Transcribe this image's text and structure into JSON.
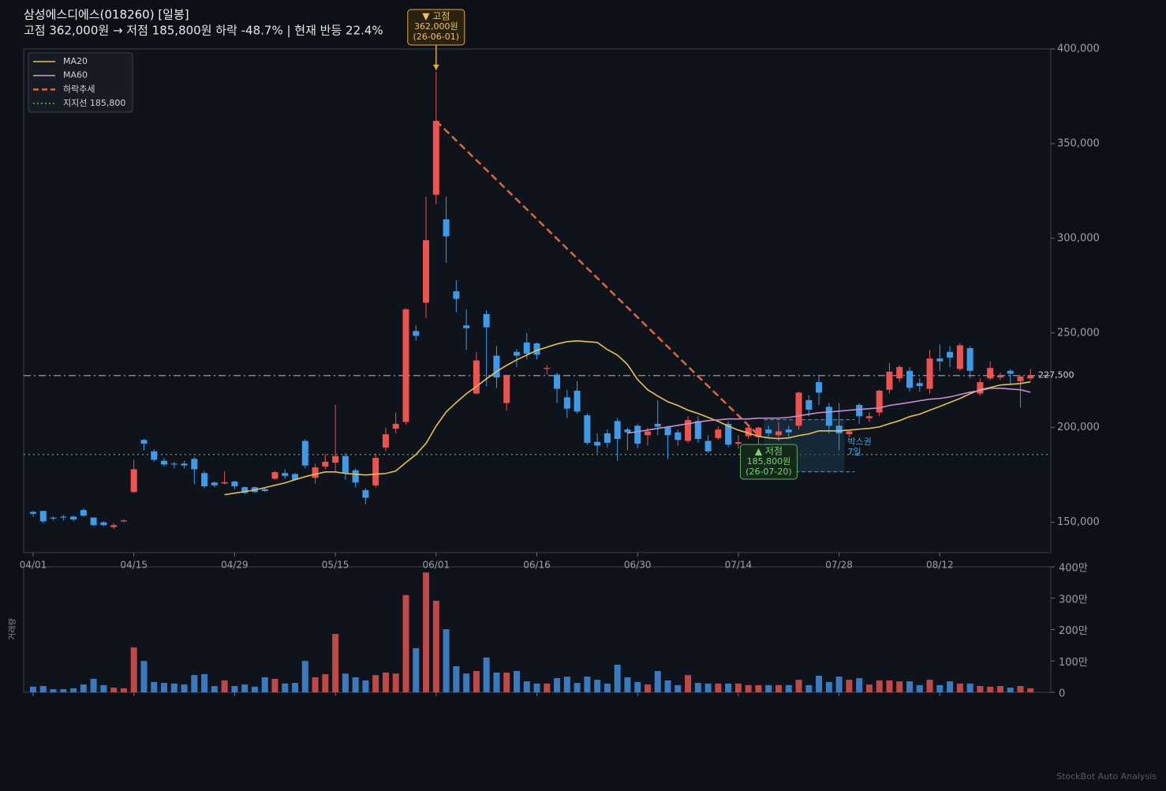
{
  "chart_data": {
    "type": "candlestick",
    "title": "삼성에스디에스(018260)  [일봉]",
    "subtitle": "고점 362,000원 → 저점 185,800원  하락 -48.7%  |  현재 반등 22.4%",
    "categories": [
      "04/01",
      null,
      null,
      null,
      null,
      null,
      null,
      null,
      null,
      null,
      "04/15",
      null,
      null,
      null,
      null,
      null,
      null,
      null,
      null,
      null,
      "04/29",
      null,
      null,
      null,
      null,
      null,
      null,
      null,
      null,
      null,
      "05/15",
      null,
      null,
      null,
      null,
      null,
      null,
      null,
      null,
      null,
      "06/01",
      null,
      null,
      null,
      null,
      null,
      null,
      null,
      null,
      null,
      "06/16",
      null,
      null,
      null,
      null,
      null,
      null,
      null,
      null,
      null,
      "06/30",
      null,
      null,
      null,
      null,
      null,
      null,
      null,
      null,
      null,
      "07/14",
      null,
      null,
      null,
      null,
      null,
      null,
      null,
      null,
      null,
      "07/28",
      null,
      null,
      null,
      null,
      null,
      null,
      null,
      null,
      null,
      "08/12",
      null,
      null,
      null,
      null,
      null,
      null,
      null,
      null,
      null
    ],
    "open": [
      155500,
      156000,
      152500,
      153000,
      153000,
      156500,
      152500,
      150000,
      147500,
      150500,
      166000,
      193500,
      187500,
      182500,
      181000,
      181000,
      183500,
      176000,
      171000,
      170500,
      171500,
      168500,
      168500,
      167500,
      173000,
      176000,
      175500,
      193000,
      173500,
      179500,
      181500,
      185000,
      177500,
      167000,
      169500,
      189500,
      199500,
      203000,
      251000,
      266000,
      323000,
      310000,
      272000,
      254000,
      218000,
      260000,
      238000,
      213000,
      240000,
      245000,
      244500,
      231000,
      228000,
      216000,
      219500,
      206500,
      192500,
      197000,
      203500,
      199000,
      201000,
      196000,
      202000,
      200500,
      197500,
      193000,
      203500,
      193000,
      194500,
      202000,
      191500,
      195500,
      195000,
      199000,
      196000,
      199000,
      201000,
      214500,
      224000,
      211000,
      201000,
      196500,
      212000,
      205000,
      208000,
      220000,
      226000,
      230000,
      223500,
      220500,
      236500,
      240000,
      231000,
      242000,
      218000,
      226000,
      226500,
      230000,
      224500,
      226000
    ],
    "high": [
      156000,
      156000,
      153000,
      154000,
      153500,
      157500,
      152500,
      150500,
      149500,
      151500,
      183000,
      194000,
      188500,
      184000,
      182000,
      182500,
      184500,
      177000,
      171500,
      177000,
      172000,
      169000,
      169000,
      168500,
      177000,
      178000,
      176000,
      194000,
      181000,
      186000,
      212000,
      186500,
      178500,
      168000,
      186500,
      200000,
      208000,
      263000,
      254000,
      322000,
      388000,
      322000,
      278000,
      262500,
      240000,
      262000,
      243000,
      228000,
      241500,
      250000,
      245000,
      233000,
      229000,
      220000,
      224500,
      207500,
      197000,
      199000,
      205000,
      200000,
      202000,
      200000,
      214500,
      201000,
      199000,
      206000,
      206000,
      196000,
      200500,
      203500,
      196000,
      201000,
      200500,
      201000,
      203000,
      201000,
      219000,
      217000,
      228000,
      213000,
      213000,
      199000,
      213000,
      208000,
      220000,
      234000,
      233000,
      232000,
      226000,
      241000,
      244000,
      243000,
      244500,
      243000,
      226000,
      235000,
      229000,
      231000,
      227500,
      231000
    ],
    "low": [
      153000,
      149500,
      151000,
      151000,
      150500,
      153000,
      148000,
      148000,
      146500,
      150000,
      165500,
      188000,
      182000,
      179500,
      178500,
      178500,
      170000,
      168000,
      168500,
      170000,
      167500,
      165000,
      165500,
      166000,
      172500,
      173000,
      172000,
      178500,
      170500,
      178000,
      177000,
      172500,
      168500,
      159500,
      168500,
      187500,
      197000,
      201500,
      246000,
      258000,
      318000,
      287000,
      261000,
      241000,
      217500,
      222000,
      221000,
      209000,
      232000,
      236000,
      236000,
      228000,
      213000,
      205000,
      207500,
      191000,
      186500,
      189500,
      182500,
      188000,
      189000,
      190500,
      196000,
      183500,
      190500,
      192000,
      192000,
      186500,
      193500,
      189500,
      189000,
      194000,
      185800,
      195000,
      193000,
      195000,
      199000,
      206000,
      212000,
      197000,
      188000,
      195000,
      202000,
      203000,
      206000,
      218000,
      224000,
      219000,
      219000,
      218000,
      230000,
      232000,
      230000,
      226000,
      217000,
      225000,
      225000,
      223000,
      210500,
      225000
    ],
    "close": [
      154500,
      150500,
      152000,
      152500,
      151500,
      153500,
      148500,
      148500,
      148500,
      151000,
      178000,
      191500,
      183000,
      180500,
      180500,
      180000,
      178000,
      169000,
      169500,
      171200,
      169000,
      165500,
      166000,
      166500,
      176500,
      174500,
      172500,
      180000,
      179000,
      182000,
      185000,
      176000,
      171000,
      163000,
      184000,
      196500,
      202000,
      262500,
      248500,
      299000,
      362000,
      301000,
      268000,
      252500,
      235500,
      253000,
      226500,
      227500,
      238000,
      239000,
      238500,
      231500,
      220500,
      210000,
      208500,
      192000,
      190500,
      192000,
      194000,
      197500,
      191500,
      198000,
      200500,
      196000,
      193500,
      204000,
      194000,
      187500,
      199000,
      191000,
      192300,
      200000,
      200000,
      197000,
      198000,
      197500,
      218500,
      209500,
      218500,
      201000,
      197000,
      198000,
      206000,
      206000,
      219500,
      229500,
      232000,
      221000,
      222000,
      236500,
      235000,
      237000,
      243500,
      230000,
      224000,
      231500,
      227500,
      228500,
      227000,
      227500
    ],
    "up_color": "#ef5350",
    "down_color": "#3d9be9",
    "ylim": [
      134000,
      400000
    ],
    "yticks": [
      {
        "value": 150000,
        "label": "150,000"
      },
      {
        "value": 200000,
        "label": "200,000"
      },
      {
        "value": 250000,
        "label": "250,000"
      },
      {
        "value": 300000,
        "label": "300,000"
      },
      {
        "value": 350000,
        "label": "350,000"
      },
      {
        "value": 400000,
        "label": "400,000"
      }
    ],
    "series": [
      {
        "name": "MA20",
        "color": "#e8c14e",
        "values": [
          null,
          null,
          null,
          null,
          null,
          null,
          null,
          null,
          null,
          null,
          null,
          null,
          null,
          null,
          null,
          null,
          null,
          null,
          null,
          164600,
          165400,
          166200,
          167100,
          168300,
          169600,
          170800,
          172500,
          174100,
          175400,
          176600,
          176600,
          175800,
          175400,
          175000,
          175400,
          175800,
          177100,
          181600,
          185800,
          191700,
          200800,
          208300,
          213300,
          217900,
          221700,
          225800,
          229600,
          232900,
          235800,
          238300,
          240800,
          242500,
          244200,
          245400,
          245800,
          245400,
          245000,
          241200,
          238300,
          233300,
          225400,
          220000,
          216700,
          213700,
          211700,
          209200,
          207500,
          205400,
          203300,
          200800,
          198700,
          197100,
          195400,
          194600,
          194200,
          194600,
          195800,
          196700,
          198300,
          198300,
          198300,
          198700,
          199200,
          199600,
          200400,
          202100,
          203700,
          205800,
          207100,
          209200,
          211200,
          213300,
          215400,
          217900,
          220000,
          221200,
          222500,
          222900,
          223300,
          224200
        ]
      },
      {
        "name": "MA60",
        "color": "#c58fd0",
        "values": [
          null,
          null,
          null,
          null,
          null,
          null,
          null,
          null,
          null,
          null,
          null,
          null,
          null,
          null,
          null,
          null,
          null,
          null,
          null,
          null,
          null,
          null,
          null,
          null,
          null,
          null,
          null,
          null,
          null,
          null,
          null,
          null,
          null,
          null,
          null,
          null,
          null,
          null,
          null,
          null,
          null,
          null,
          null,
          null,
          null,
          null,
          null,
          null,
          null,
          null,
          null,
          null,
          null,
          null,
          null,
          null,
          null,
          null,
          null,
          197100,
          197900,
          198700,
          199600,
          200400,
          201200,
          202100,
          202900,
          203700,
          204100,
          204600,
          204600,
          204600,
          205000,
          205000,
          205000,
          205400,
          206200,
          207100,
          207900,
          208300,
          208700,
          209200,
          209600,
          210000,
          210400,
          211700,
          212500,
          213300,
          214200,
          215000,
          215400,
          216200,
          217500,
          218700,
          219600,
          220800,
          220800,
          220400,
          220000,
          218700
        ]
      }
    ],
    "trend": {
      "name": "하락추세",
      "color": "#e0663c",
      "from": [
        40,
        362000
      ],
      "to": [
        72,
        196000
      ]
    },
    "support": {
      "name": "지지선 185,800",
      "color": "#4caf50",
      "value": 185800
    },
    "current": {
      "value": 227500,
      "label": "227,500"
    },
    "peak": {
      "index": 40,
      "value": 388000,
      "lines": [
        "▼ 고점",
        "362,000원",
        "(26-06-01)"
      ]
    },
    "trough": {
      "index": 72,
      "value": 185800,
      "lines": [
        "▲ 저점",
        "185,800원",
        "(26-07-20)"
      ]
    },
    "box": {
      "lines": [
        "박스권",
        "7일"
      ],
      "x": [
        73,
        81
      ],
      "range": [
        176700,
        204200
      ]
    },
    "volume": {
      "label": "거래량",
      "ylim": [
        0,
        4000000
      ],
      "yticks": [
        0,
        {
          "value": 1000000,
          "label": "100만"
        },
        {
          "value": 2000000,
          "label": "200만"
        },
        {
          "value": 3000000,
          "label": "300만"
        },
        {
          "value": 4000000,
          "label": "400만"
        }
      ],
      "values": [
        180000,
        200000,
        100000,
        100000,
        130000,
        250000,
        430000,
        230000,
        150000,
        130000,
        1430000,
        1000000,
        330000,
        300000,
        280000,
        250000,
        550000,
        580000,
        200000,
        380000,
        200000,
        250000,
        180000,
        480000,
        430000,
        280000,
        300000,
        1000000,
        480000,
        580000,
        1860000,
        600000,
        480000,
        380000,
        550000,
        630000,
        600000,
        3100000,
        1410000,
        3820000,
        2920000,
        2010000,
        830000,
        600000,
        680000,
        1110000,
        630000,
        630000,
        680000,
        350000,
        280000,
        280000,
        450000,
        500000,
        300000,
        500000,
        400000,
        280000,
        880000,
        480000,
        330000,
        250000,
        680000,
        380000,
        230000,
        550000,
        300000,
        280000,
        280000,
        280000,
        280000,
        230000,
        230000,
        230000,
        230000,
        230000,
        400000,
        230000,
        530000,
        330000,
        500000,
        400000,
        450000,
        250000,
        380000,
        380000,
        350000,
        350000,
        230000,
        400000,
        230000,
        350000,
        280000,
        280000,
        200000,
        180000,
        200000,
        150000,
        200000,
        130000
      ]
    },
    "footer": "StockBot Auto Analysis"
  }
}
